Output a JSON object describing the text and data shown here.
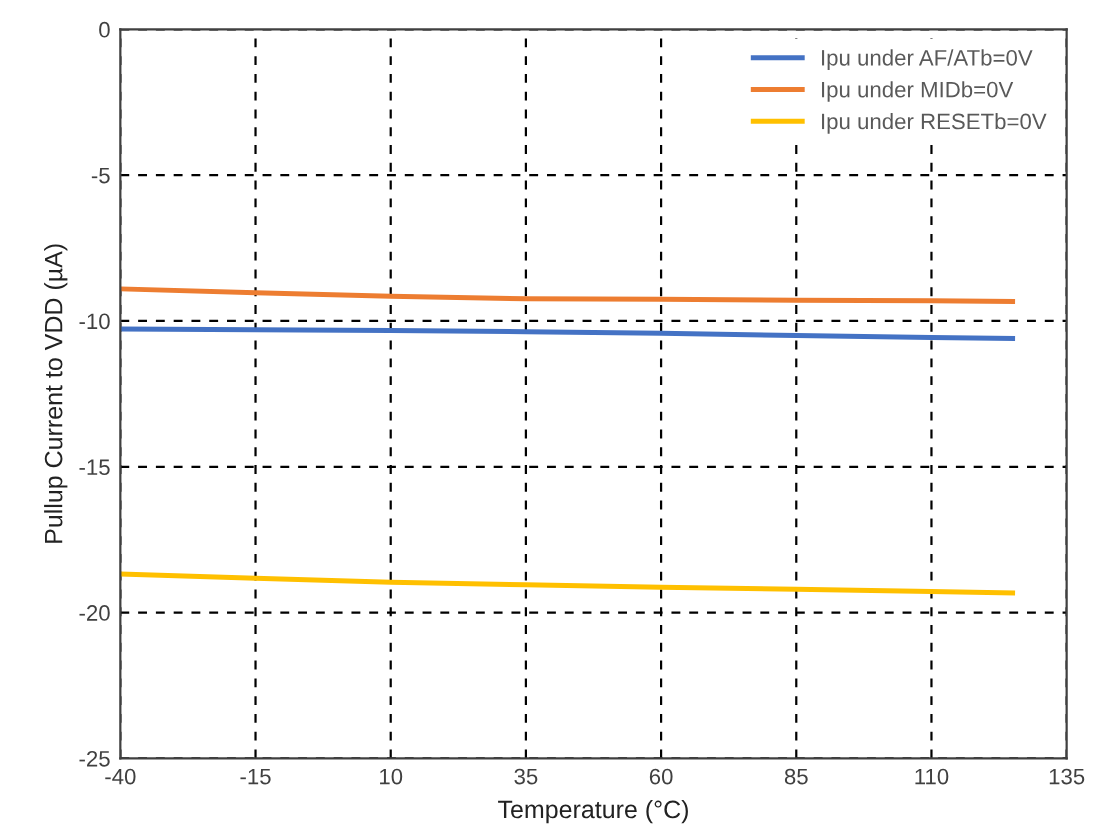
{
  "chart_data": {
    "type": "line",
    "xlabel": "Temperature (°C)",
    "ylabel": "Pullup Current to VDD (µA)",
    "x": [
      -40,
      -15,
      10,
      35,
      60,
      85,
      110,
      125
    ],
    "series": [
      {
        "name": "Ipu under AF/ATb=0V",
        "color": "#4472c4",
        "values": [
          -10.28,
          -10.3,
          -10.33,
          -10.37,
          -10.42,
          -10.5,
          -10.57,
          -10.6
        ]
      },
      {
        "name": "Ipu under MIDb=0V",
        "color": "#ed7d31",
        "values": [
          -8.9,
          -9.03,
          -9.15,
          -9.24,
          -9.26,
          -9.29,
          -9.31,
          -9.33
        ]
      },
      {
        "name": "Ipu under RESETb=0V",
        "color": "#ffc000",
        "values": [
          -18.68,
          -18.82,
          -18.96,
          -19.05,
          -19.13,
          -19.2,
          -19.28,
          -19.33
        ]
      }
    ],
    "xlim": [
      -40,
      135
    ],
    "xticks": [
      -40,
      -15,
      10,
      35,
      60,
      85,
      110,
      135
    ],
    "ylim": [
      -25,
      0
    ],
    "yticks": [
      -25,
      -20,
      -15,
      -10,
      -5,
      0
    ],
    "grid": true,
    "legend": "top right",
    "marker": "none",
    "line_style": "solid"
  }
}
